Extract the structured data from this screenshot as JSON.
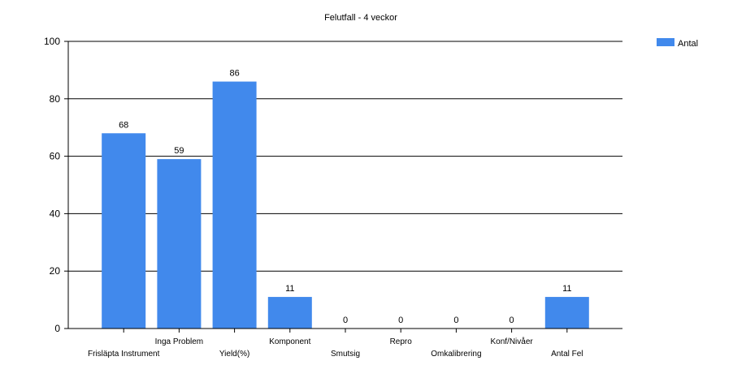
{
  "chart_data": {
    "type": "bar",
    "title": "Felutfall - 4 veckor",
    "categories": [
      "Frisläpta Instrument",
      "Inga Problem",
      "Yield(%)",
      "Komponent",
      "Smutsig",
      "Repro",
      "Omkalibrering",
      "Konf/Nivåer",
      "Antal Fel"
    ],
    "series": [
      {
        "name": "Antal",
        "values": [
          68,
          59,
          86,
          11,
          0,
          0,
          0,
          0,
          11
        ]
      }
    ],
    "data_labels": [
      "68",
      "59",
      "86",
      "11",
      "0",
      "0",
      "0",
      "0",
      "11"
    ],
    "ylim": [
      0,
      100
    ],
    "yticks": [
      "0",
      "20",
      "40",
      "60",
      "80",
      "100"
    ],
    "xlabel": "",
    "ylabel": "",
    "grid": true,
    "legend": {
      "position": "top-right",
      "entries": [
        "Antal"
      ]
    },
    "colors": {
      "bar": "#4189ec",
      "grid": "#000000",
      "text": "#000000"
    }
  }
}
